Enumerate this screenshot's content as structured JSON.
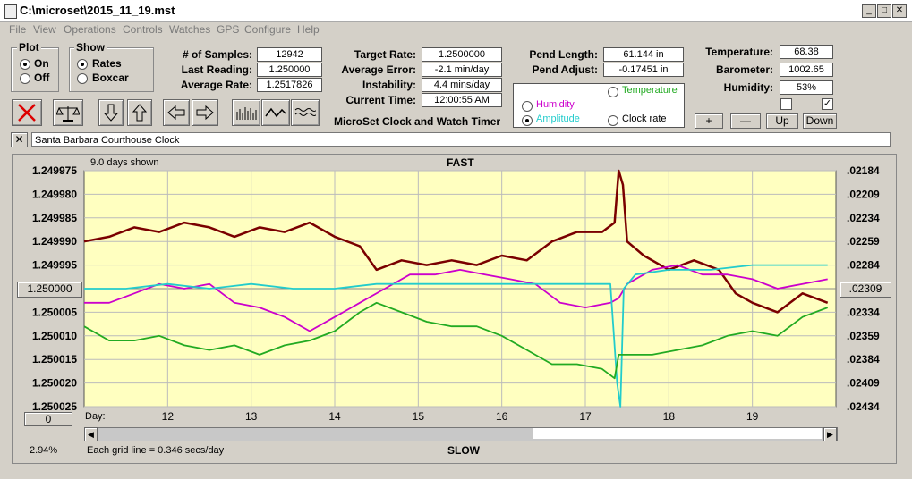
{
  "window": {
    "title": "C:\\microset\\2015_11_19.mst"
  },
  "menu": [
    "File",
    "View",
    "Operations",
    "Controls",
    "Watches",
    "GPS",
    "Configure",
    "Help"
  ],
  "plot_group": {
    "title": "Plot",
    "options": [
      "On",
      "Off"
    ],
    "selected": "On"
  },
  "show_group": {
    "title": "Show",
    "options": [
      "Rates",
      "Boxcar"
    ],
    "selected": "Rates"
  },
  "stats1": [
    {
      "label": "# of Samples:",
      "value": "12942"
    },
    {
      "label": "Last Reading:",
      "value": "1.250000"
    },
    {
      "label": "Average Rate:",
      "value": "1.2517826"
    }
  ],
  "stats2": [
    {
      "label": "Target Rate:",
      "value": "1.2500000"
    },
    {
      "label": "Average Error:",
      "value": "-2.1 min/day"
    },
    {
      "label": "Instability:",
      "value": "4.4 mins/day"
    },
    {
      "label": "Current Time:",
      "value": "12:00:55 AM"
    }
  ],
  "stats3": [
    {
      "label": "Pend Length:",
      "value": "61.144 in"
    },
    {
      "label": "Pend Adjust:",
      "value": "-0.17451 in"
    }
  ],
  "stats4": [
    {
      "label": "Temperature:",
      "value": "68.38"
    },
    {
      "label": "Barometer:",
      "value": "1002.65"
    },
    {
      "label": "Humidity:",
      "value": "53%"
    }
  ],
  "app_caption": "MicroSet Clock and Watch Timer",
  "right_options": {
    "temperature": {
      "label": "Temperature",
      "color": "#22aa22"
    },
    "humidity": {
      "label": "Humidity",
      "color": "#cc00cc"
    },
    "amplitude": {
      "label": "Amplitude",
      "color": "#22cccc"
    },
    "clock_rate": {
      "label": "Clock rate",
      "color": "#000000"
    },
    "selected": "Amplitude"
  },
  "scale_buttons": [
    "+",
    "—",
    "Up",
    "Down"
  ],
  "checkbox2_checked": true,
  "clock_name": "Santa Barbara Courthouse Clock",
  "chart_data": {
    "type": "line",
    "title": "FAST",
    "bottom_label": "SLOW",
    "days_shown": "9.0 days shown",
    "x_axis_label": "Day:",
    "x_ticks": [
      "12",
      "13",
      "14",
      "15",
      "16",
      "17",
      "18",
      "19"
    ],
    "xlim": [
      11,
      20
    ],
    "y_left_ticks": [
      "1.249975",
      "1.249980",
      "1.249985",
      "1.249990",
      "1.249995",
      "1.250000",
      "1.250005",
      "1.250010",
      "1.250015",
      "1.250020",
      "1.250025"
    ],
    "y_right_ticks": [
      ".02184",
      ".02209",
      ".02234",
      ".02259",
      ".02284",
      ".02309",
      ".02334",
      ".02359",
      ".02384",
      ".02409",
      ".02434"
    ],
    "ylim": [
      1.250025,
      1.249975
    ],
    "center_left": "1.250000",
    "center_right": ".02309",
    "bottom_left_value": "0",
    "grid": true,
    "grid_note": "Each grid line = 0.346 secs/day",
    "zoom_percent": "2.94%",
    "series": [
      {
        "color": "#7a0000",
        "x": [
          11,
          11.3,
          11.6,
          11.9,
          12.2,
          12.5,
          12.8,
          13.1,
          13.4,
          13.7,
          14.0,
          14.3,
          14.5,
          14.8,
          15.1,
          15.4,
          15.7,
          16.0,
          16.3,
          16.6,
          16.9,
          17.2,
          17.35,
          17.4,
          17.45,
          17.5,
          17.7,
          18.0,
          18.3,
          18.6,
          18.8,
          19.0,
          19.3,
          19.6,
          19.9
        ],
        "y": [
          1.24999,
          1.249989,
          1.249987,
          1.249988,
          1.249986,
          1.249987,
          1.249989,
          1.249987,
          1.249988,
          1.249986,
          1.249989,
          1.249991,
          1.249996,
          1.249994,
          1.249995,
          1.249994,
          1.249995,
          1.249993,
          1.249994,
          1.24999,
          1.249988,
          1.249988,
          1.249986,
          1.249975,
          1.249978,
          1.24999,
          1.249993,
          1.249996,
          1.249994,
          1.249996,
          1.250001,
          1.250003,
          1.250005,
          1.250001,
          1.250003
        ]
      },
      {
        "color": "#cc00cc",
        "x": [
          11,
          11.3,
          11.6,
          11.9,
          12.2,
          12.5,
          12.8,
          13.1,
          13.4,
          13.7,
          14.0,
          14.3,
          14.6,
          14.9,
          15.2,
          15.5,
          15.8,
          16.1,
          16.4,
          16.7,
          17.0,
          17.3,
          17.4,
          17.5,
          17.8,
          18.1,
          18.4,
          18.7,
          19.0,
          19.3,
          19.6,
          19.9
        ],
        "y": [
          1.250003,
          1.250003,
          1.250001,
          1.249999,
          1.25,
          1.249999,
          1.250003,
          1.250004,
          1.250006,
          1.250009,
          1.250006,
          1.250003,
          1.25,
          1.249997,
          1.249997,
          1.249996,
          1.249997,
          1.249998,
          1.249999,
          1.250003,
          1.250004,
          1.250003,
          1.250002,
          1.249999,
          1.249996,
          1.249995,
          1.249997,
          1.249997,
          1.249998,
          1.25,
          1.249999,
          1.249998
        ]
      },
      {
        "color": "#22cccc",
        "x": [
          11,
          11.5,
          12,
          12.5,
          13,
          13.5,
          14,
          14.5,
          15,
          15.5,
          16,
          16.5,
          17,
          17.3,
          17.38,
          17.42,
          17.46,
          17.6,
          18,
          18.5,
          19,
          19.5,
          19.9
        ],
        "y": [
          1.25,
          1.25,
          1.249999,
          1.25,
          1.249999,
          1.25,
          1.25,
          1.249999,
          1.249999,
          1.249999,
          1.249999,
          1.249999,
          1.249999,
          1.249999,
          1.25002,
          1.250025,
          1.25,
          1.249997,
          1.249996,
          1.249996,
          1.249995,
          1.249995,
          1.249995
        ]
      },
      {
        "color": "#22aa22",
        "x": [
          11,
          11.3,
          11.6,
          11.9,
          12.2,
          12.5,
          12.8,
          13.1,
          13.4,
          13.7,
          14.0,
          14.3,
          14.5,
          14.8,
          15.1,
          15.4,
          15.7,
          16.0,
          16.3,
          16.6,
          16.9,
          17.2,
          17.35,
          17.4,
          17.5,
          17.8,
          18.1,
          18.4,
          18.7,
          19.0,
          19.3,
          19.6,
          19.9
        ],
        "y": [
          1.250008,
          1.250011,
          1.250011,
          1.25001,
          1.250012,
          1.250013,
          1.250012,
          1.250014,
          1.250012,
          1.250011,
          1.250009,
          1.250005,
          1.250003,
          1.250005,
          1.250007,
          1.250008,
          1.250008,
          1.25001,
          1.250013,
          1.250016,
          1.250016,
          1.250017,
          1.250019,
          1.250014,
          1.250014,
          1.250014,
          1.250013,
          1.250012,
          1.25001,
          1.250009,
          1.25001,
          1.250006,
          1.250004
        ]
      }
    ]
  }
}
